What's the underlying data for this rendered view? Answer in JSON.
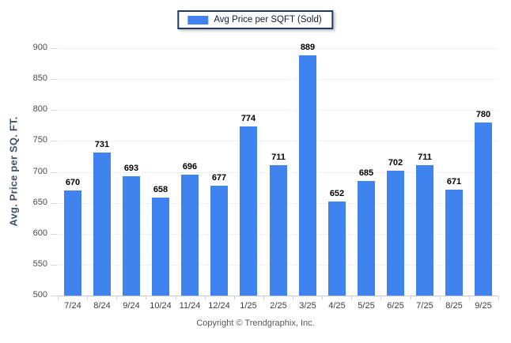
{
  "legend": {
    "label": "Avg Price per SQFT (Sold)"
  },
  "y_axis_title": "Avg. Price per SQ. FT.",
  "footer_text": "Copyright © Trendgraphix, Inc.",
  "colors": {
    "bar": "#4183ee",
    "legend_border": "#1e3a68",
    "gridline": "#f0f0f0",
    "axis_line": "#c9c9c9",
    "value_label": "#000000",
    "tick_label": "#4a4a52",
    "y_title": "#3e5269",
    "footer": "#595959",
    "background": "#ffffff"
  },
  "chart_data": {
    "type": "bar",
    "title": "Avg Price per SQFT (Sold)",
    "categories": [
      "7/24",
      "8/24",
      "9/24",
      "10/24",
      "11/24",
      "12/24",
      "1/25",
      "2/25",
      "3/25",
      "4/25",
      "5/25",
      "6/25",
      "7/25",
      "8/25",
      "9/25"
    ],
    "values": [
      670,
      731,
      693,
      658,
      696,
      677,
      774,
      711,
      889,
      652,
      685,
      702,
      711,
      671,
      780
    ],
    "xlabel": "",
    "ylabel": "Avg. Price per SQ. FT.",
    "ylim": [
      500,
      900
    ],
    "ytick_step": 50,
    "yticks": [
      500,
      550,
      600,
      650,
      700,
      750,
      800,
      850,
      900
    ],
    "grid": true,
    "legend_position": "top-center",
    "legend_entries": [
      "Avg Price per SQFT (Sold)"
    ],
    "data_labels": true
  }
}
